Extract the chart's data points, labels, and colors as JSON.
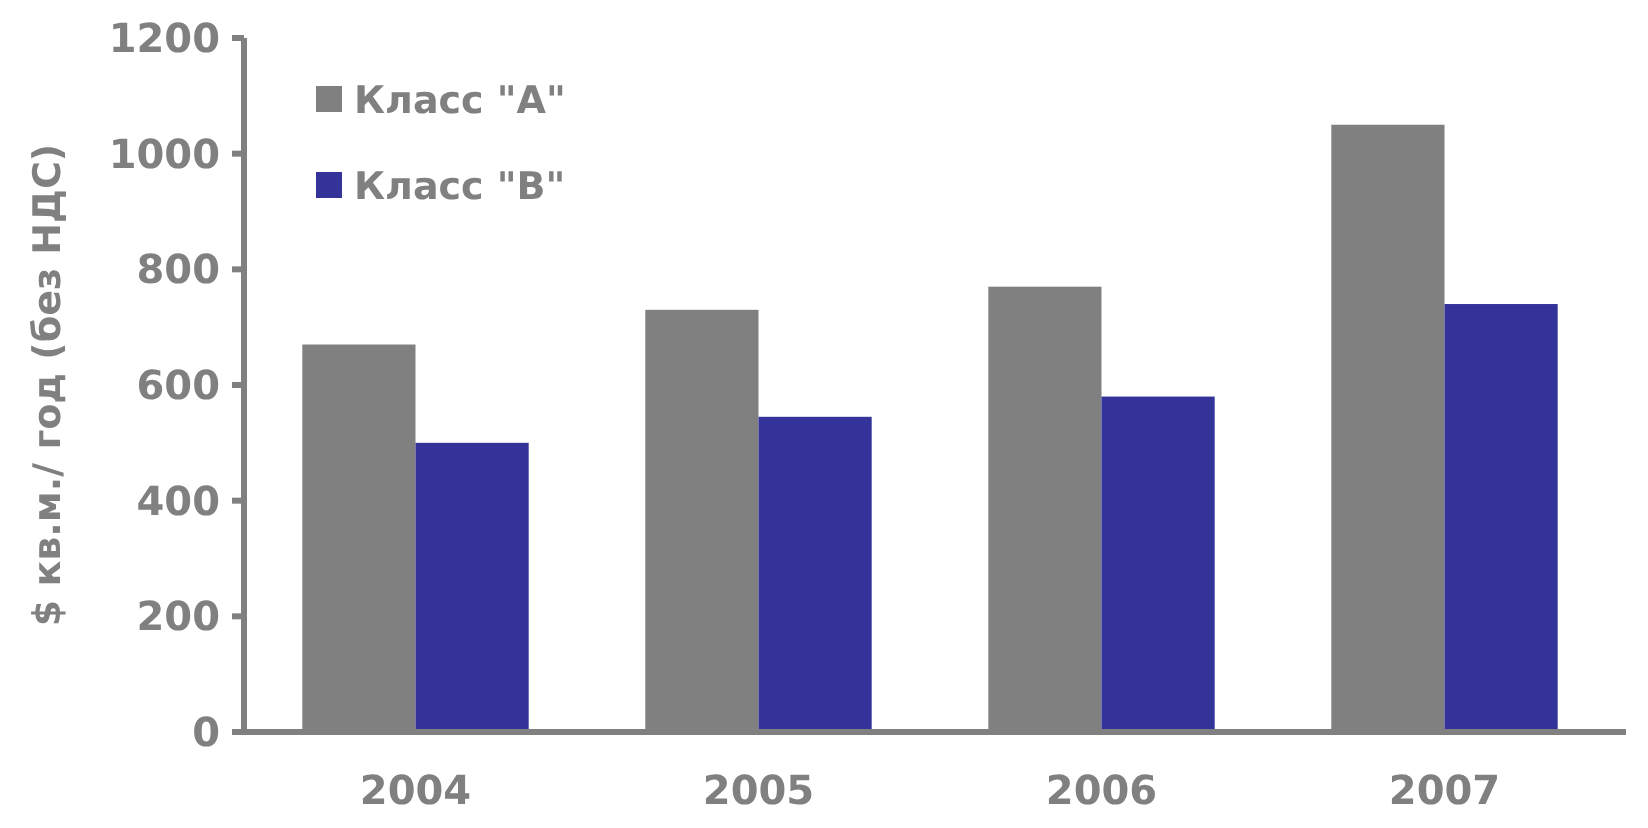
{
  "chart_data": {
    "type": "bar",
    "ylabel": "$ кв.м./ год (без НДС)",
    "categories": [
      "2004",
      "2005",
      "2006",
      "2007"
    ],
    "series": [
      {
        "name": "Класс \"A\"",
        "color": "#808080",
        "values": [
          670,
          730,
          770,
          1050
        ]
      },
      {
        "name": "Класс \"B\"",
        "color": "#333399",
        "values": [
          500,
          545,
          580,
          740
        ]
      }
    ],
    "ylim": [
      0,
      1200
    ],
    "yticks": [
      0,
      200,
      400,
      600,
      800,
      1000,
      1200
    ],
    "grid": false,
    "legend": "top left"
  }
}
